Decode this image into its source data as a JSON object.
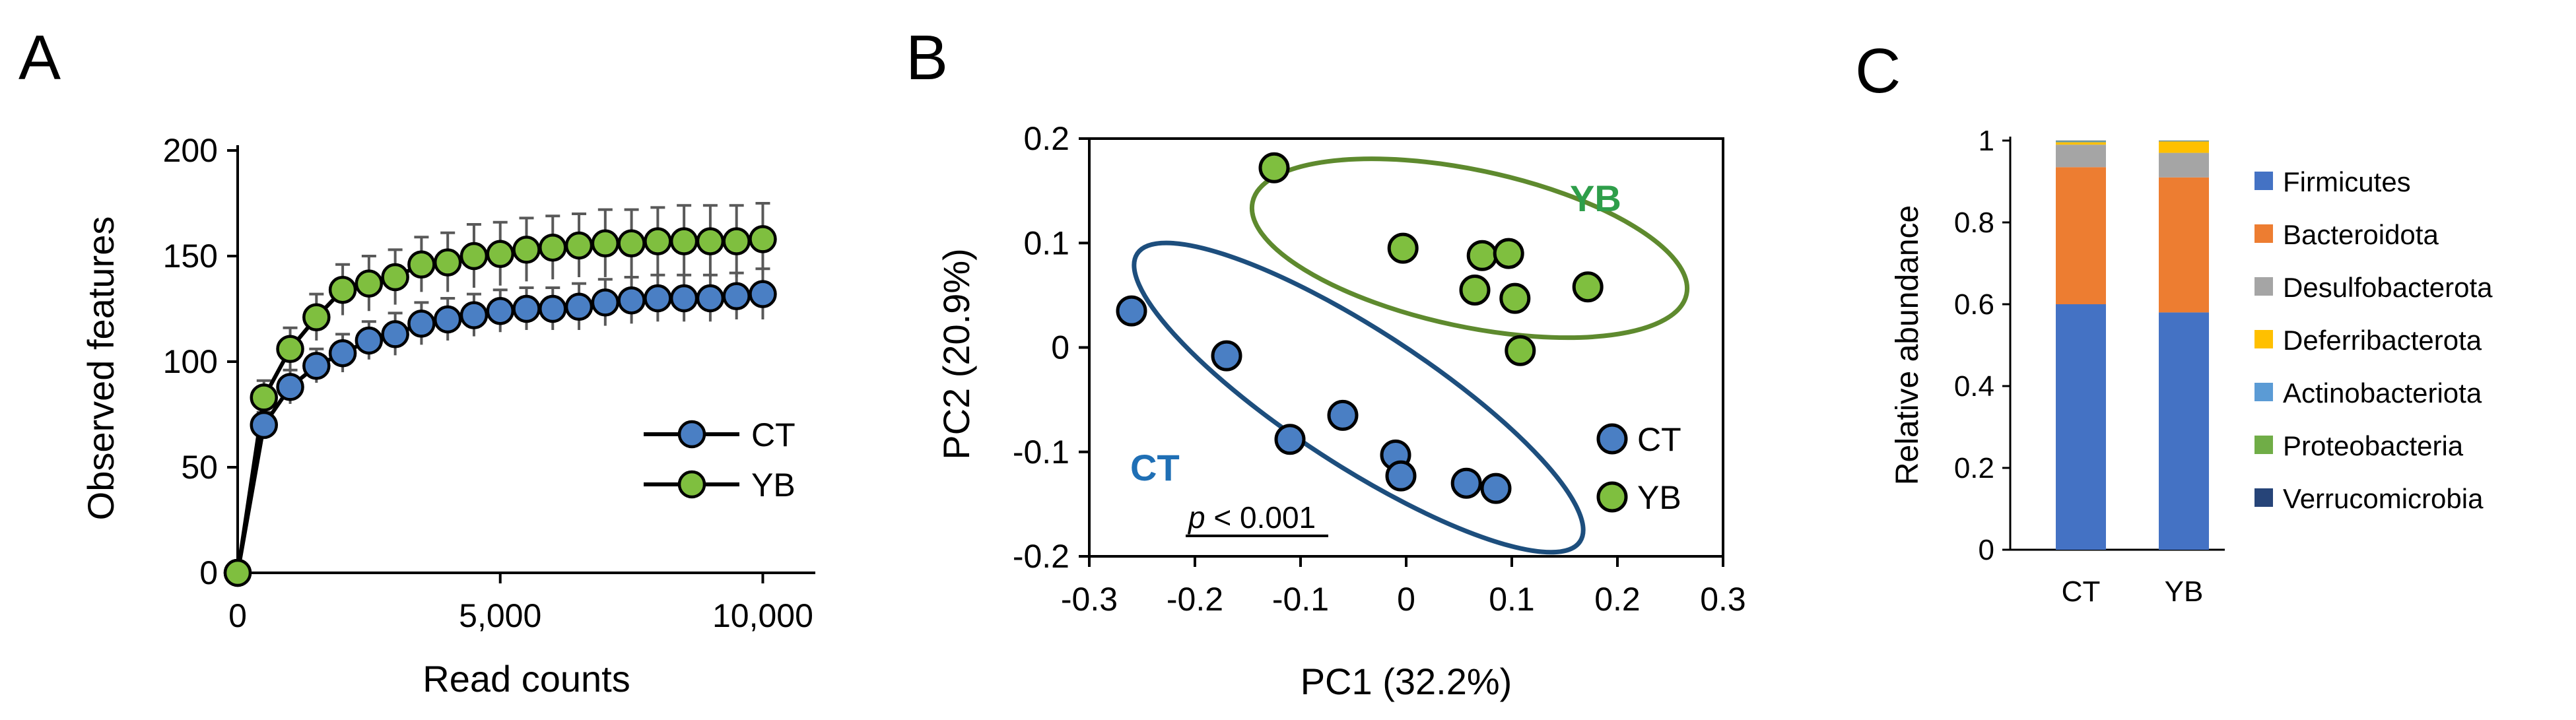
{
  "panel_labels": [
    "A",
    "B",
    "C"
  ],
  "chart_data": [
    {
      "type": "line",
      "panel": "A",
      "xlabel": "Read counts",
      "ylabel": "Observed features",
      "xlim": [
        0,
        11000
      ],
      "ylim": [
        0,
        200
      ],
      "xticks": [
        0,
        5000,
        10000
      ],
      "xtick_labels": [
        "0",
        "5,000",
        "10,000"
      ],
      "yticks": [
        0,
        50,
        100,
        150,
        200
      ],
      "ytick_labels": [
        "0",
        "50",
        "100",
        "150",
        "200"
      ],
      "legend": "right",
      "series": [
        {
          "name": "CT",
          "color": "#4a7fc4",
          "x": [
            0,
            500,
            1000,
            1500,
            2000,
            2500,
            3000,
            3500,
            4000,
            4500,
            5000,
            5500,
            6000,
            6500,
            7000,
            7500,
            8000,
            8500,
            9000,
            9500,
            10000
          ],
          "y": [
            0,
            70,
            88,
            98,
            104,
            110,
            113,
            118,
            120,
            122,
            124,
            125,
            125,
            126,
            128,
            129,
            130,
            130,
            130,
            131,
            132
          ],
          "err": [
            0,
            6,
            8,
            8,
            9,
            9,
            10,
            10,
            10,
            10,
            10,
            10,
            10,
            11,
            11,
            11,
            11,
            11,
            11,
            11,
            12
          ]
        },
        {
          "name": "YB",
          "color": "#7fbf3f",
          "x": [
            0,
            500,
            1000,
            1500,
            2000,
            2500,
            3000,
            3500,
            4000,
            4500,
            5000,
            5500,
            6000,
            6500,
            7000,
            7500,
            8000,
            8500,
            9000,
            9500,
            10000
          ],
          "y": [
            0,
            83,
            106,
            121,
            134,
            137,
            140,
            146,
            147,
            150,
            151,
            153,
            154,
            155,
            156,
            156,
            157,
            157,
            157,
            157,
            158
          ],
          "err": [
            0,
            8,
            10,
            11,
            12,
            13,
            13,
            13,
            14,
            15,
            15,
            15,
            15,
            15,
            16,
            16,
            16,
            17,
            17,
            17,
            17
          ]
        }
      ]
    },
    {
      "type": "scatter",
      "panel": "B",
      "xlabel": "PC1 (32.2%)",
      "ylabel": "PC2 (20.9%)",
      "xlim": [
        -0.3,
        0.3
      ],
      "ylim": [
        -0.2,
        0.2
      ],
      "xticks": [
        -0.3,
        -0.2,
        -0.1,
        0,
        0.1,
        0.2,
        0.3
      ],
      "xtick_labels": [
        "-0.3",
        "-0.2",
        "-0.1",
        "0",
        "0.1",
        "0.2",
        "0.3"
      ],
      "yticks": [
        -0.2,
        -0.1,
        0,
        0.1,
        0.2
      ],
      "ytick_labels": [
        "-0.2",
        "-0.1",
        "0",
        "0.1",
        "0.2"
      ],
      "annotation": "p < 0.001",
      "annotation_italic": "p",
      "annotation_rest": " < 0.001",
      "group_labels": [
        {
          "text": "CT",
          "color": "#1f6fb5"
        },
        {
          "text": "YB",
          "color": "#2e9e4a"
        }
      ],
      "series": [
        {
          "name": "CT",
          "color": "#4a7fc4",
          "points": [
            [
              -0.26,
              0.035
            ],
            [
              -0.17,
              -0.008
            ],
            [
              -0.11,
              -0.088
            ],
            [
              -0.06,
              -0.065
            ],
            [
              -0.01,
              -0.103
            ],
            [
              -0.005,
              -0.123
            ],
            [
              0.057,
              -0.13
            ],
            [
              0.085,
              -0.135
            ]
          ]
        },
        {
          "name": "YB",
          "color": "#7fbf3f",
          "points": [
            [
              -0.125,
              0.172
            ],
            [
              -0.003,
              0.095
            ],
            [
              0.065,
              0.055
            ],
            [
              0.072,
              0.088
            ],
            [
              0.097,
              0.09
            ],
            [
              0.103,
              0.047
            ],
            [
              0.108,
              -0.003
            ],
            [
              0.172,
              0.058
            ]
          ]
        }
      ],
      "ellipses": [
        {
          "group": "CT",
          "color": "#1d4e7d",
          "cx": -0.045,
          "cy": -0.048,
          "rx": 0.25,
          "ry": 0.065,
          "angle_data": -33
        },
        {
          "group": "YB",
          "color": "#5e8a2e",
          "cx": 0.06,
          "cy": 0.095,
          "rx": 0.21,
          "ry": 0.075,
          "angle_data": -12
        }
      ]
    },
    {
      "type": "bar",
      "stacked": true,
      "panel": "C",
      "ylabel": "Relative abundance",
      "ylim": [
        0,
        1
      ],
      "yticks": [
        0,
        0.2,
        0.4,
        0.6,
        0.8,
        1
      ],
      "ytick_labels": [
        "0",
        "0.2",
        "0.4",
        "0.6",
        "0.8",
        "1"
      ],
      "categories": [
        "CT",
        "YB"
      ],
      "legend": "right",
      "series": [
        {
          "name": "Firmicutes",
          "color": "#4472c4",
          "values": [
            0.6,
            0.58
          ]
        },
        {
          "name": "Bacteroidota",
          "color": "#ed7d31",
          "values": [
            0.335,
            0.33
          ]
        },
        {
          "name": "Desulfobacterota",
          "color": "#a5a5a5",
          "values": [
            0.055,
            0.06
          ]
        },
        {
          "name": "Deferribacterota",
          "color": "#ffc000",
          "values": [
            0.006,
            0.028
          ]
        },
        {
          "name": "Actinobacteriota",
          "color": "#5b9bd5",
          "values": [
            0.002,
            0.001
          ]
        },
        {
          "name": "Proteobacteria",
          "color": "#70ad47",
          "values": [
            0.001,
            0.0005
          ]
        },
        {
          "name": "Verrucomicrobia",
          "color": "#264478",
          "values": [
            0.001,
            0.0005
          ]
        }
      ]
    }
  ]
}
